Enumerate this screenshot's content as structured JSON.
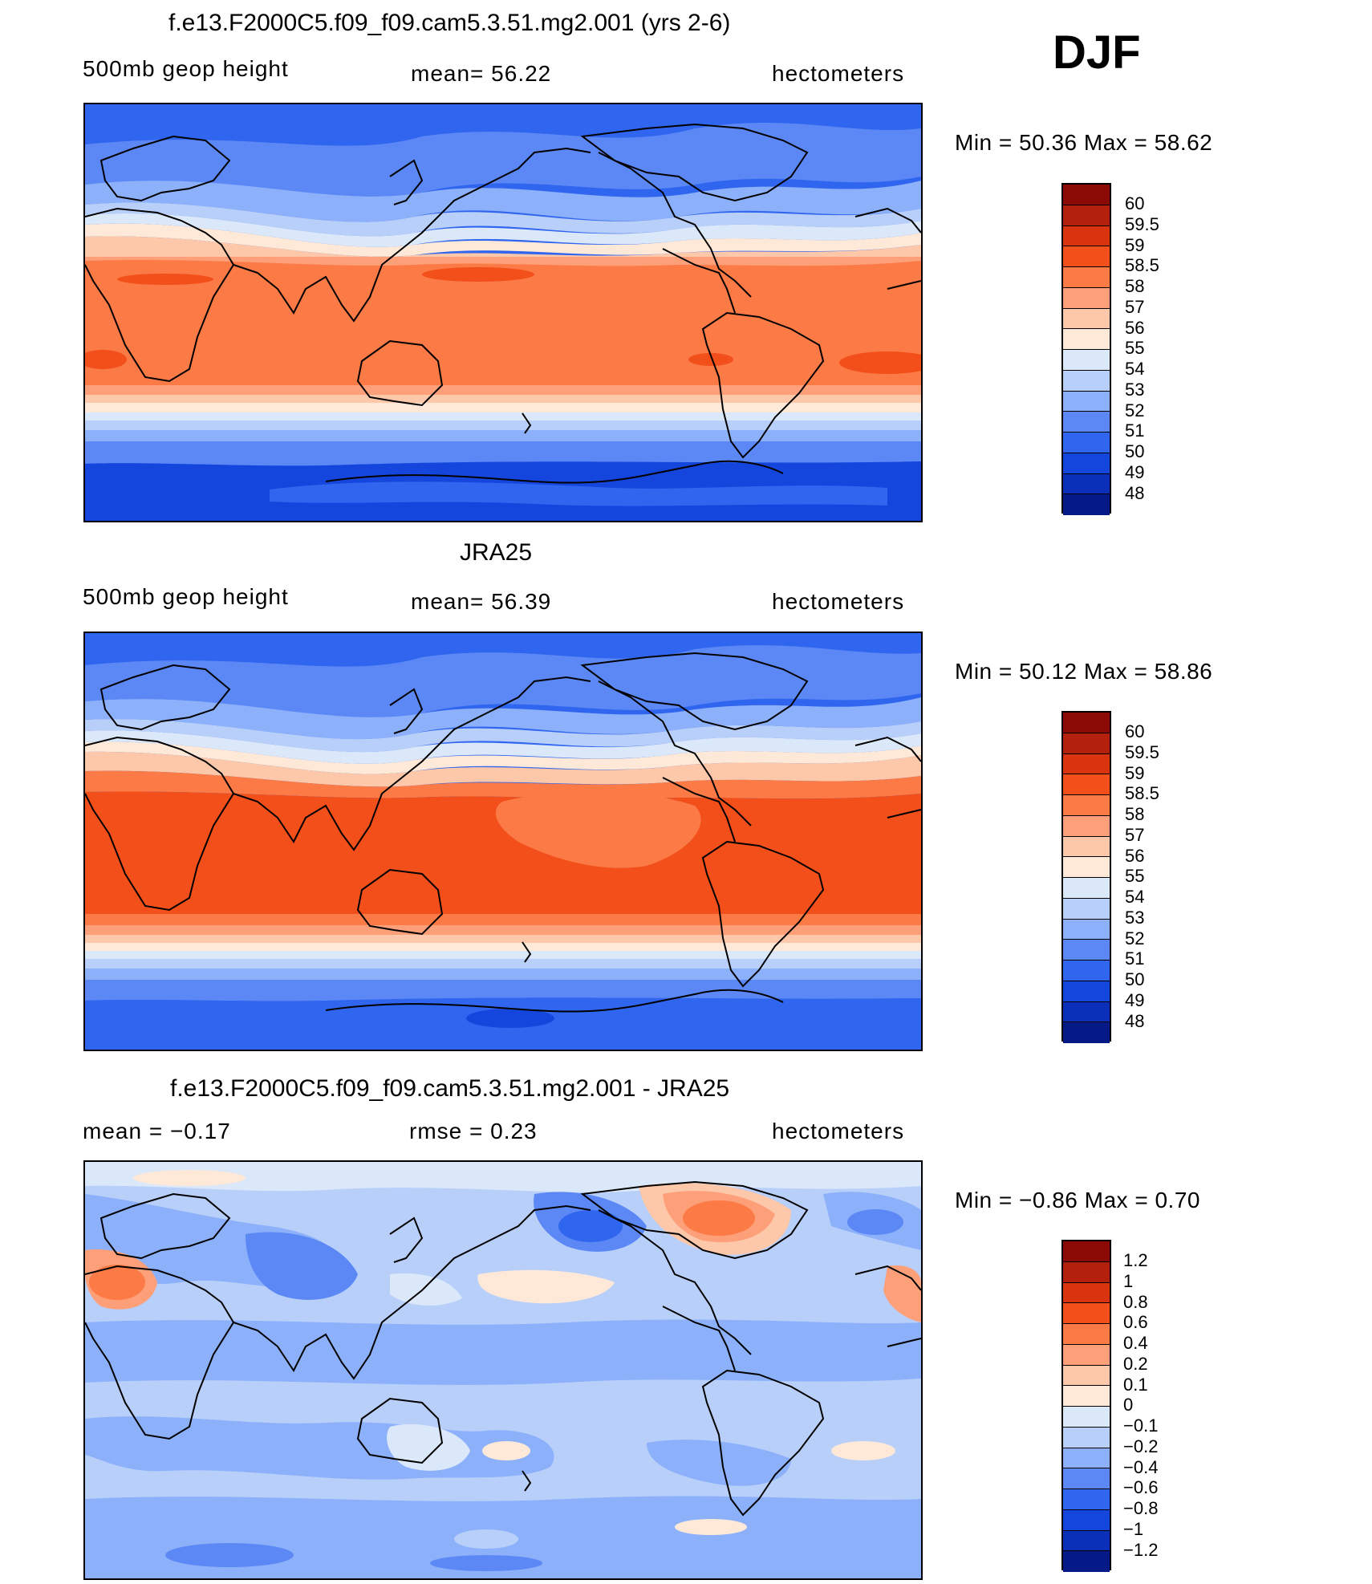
{
  "season": "DJF",
  "panels": [
    {
      "id": "model",
      "title": "f.e13.F2000C5.f09_f09.cam5.3.51.mg2.001 (yrs 2-6)",
      "variable": "500mb geop height",
      "stat1": "mean=   56.22",
      "stat2": "",
      "units": "hectometers",
      "minmax": "Min =   50.36  Max =   58.62"
    },
    {
      "id": "obs",
      "title": "JRA25",
      "variable": "500mb geop height",
      "stat1": "mean=   56.39",
      "stat2": "",
      "units": "hectometers",
      "minmax": "Min =   50.12  Max =   58.86"
    },
    {
      "id": "diff",
      "title": "f.e13.F2000C5.f09_f09.cam5.3.51.mg2.001 - JRA25",
      "variable": "mean =   −0.17",
      "stat1": "rmse =    0.23",
      "stat2": "",
      "units": "hectometers",
      "minmax": "Min =   −0.86  Max =    0.70"
    }
  ],
  "colorbars": {
    "height": {
      "labels": [
        "60",
        "59.5",
        "59",
        "58.5",
        "58",
        "57",
        "56",
        "55",
        "54",
        "53",
        "52",
        "51",
        "50",
        "49",
        "48"
      ],
      "colors": [
        "#8b0a05",
        "#b3200c",
        "#d9340f",
        "#f24f1a",
        "#fb7a45",
        "#fda07a",
        "#fdc7a9",
        "#fee9d9",
        "#dbe8fa",
        "#b8cffa",
        "#8cb0fa",
        "#5c88f5",
        "#3065ef",
        "#1446dd",
        "#0a2fb8",
        "#061a87"
      ]
    },
    "diff": {
      "labels": [
        "1.2",
        "1",
        "0.8",
        "0.6",
        "0.4",
        "0.2",
        "0.1",
        "0",
        "−0.1",
        "−0.2",
        "−0.4",
        "−0.6",
        "−0.8",
        "−1",
        "−1.2"
      ],
      "colors": [
        "#8b0a05",
        "#b3200c",
        "#d9340f",
        "#f24f1a",
        "#fb7a45",
        "#fda07a",
        "#fdc7a9",
        "#fee9d9",
        "#dbe8fa",
        "#b8cffa",
        "#8cb0fa",
        "#5c88f5",
        "#3065ef",
        "#1446dd",
        "#0a2fb8",
        "#061a87"
      ]
    }
  },
  "map_data": {
    "projection": "cylindrical equidistant",
    "lon_range": [
      0,
      360
    ],
    "lat_range": [
      -90,
      90
    ],
    "field": "500mb geopotential height contour fill"
  }
}
